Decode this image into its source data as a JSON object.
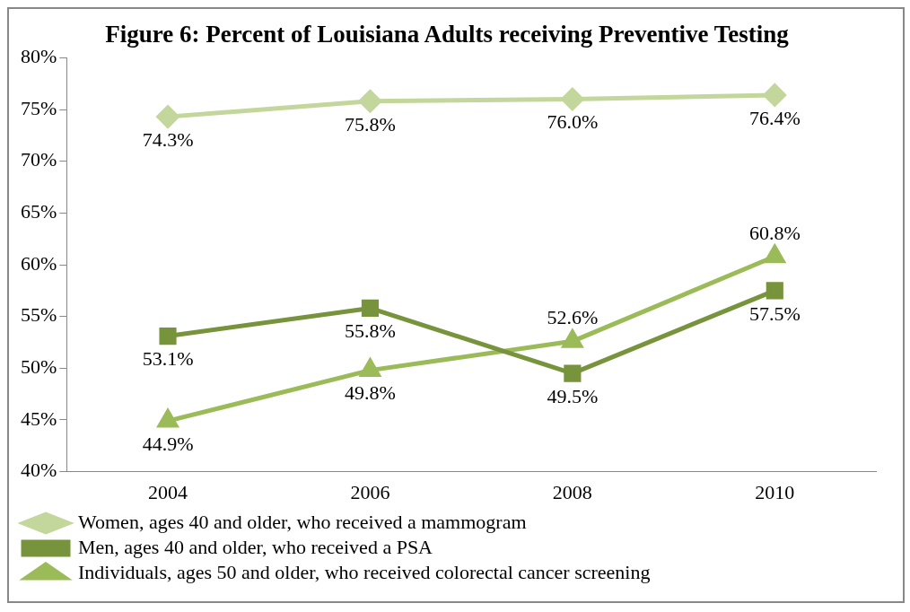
{
  "chart_data": {
    "type": "line",
    "title": "Figure 6: Percent of Louisiana Adults receiving Preventive Testing",
    "categories": [
      "2004",
      "2006",
      "2008",
      "2010"
    ],
    "series": [
      {
        "name": "Women, ages 40 and older, who received a mammogram",
        "color": "#c3d69b",
        "marker": "diamond",
        "values": [
          74.3,
          75.8,
          76.0,
          76.4
        ],
        "value_labels": [
          "74.3%",
          "75.8%",
          "76.0%",
          "76.4%"
        ]
      },
      {
        "name": "Men, ages 40 and older, who received a PSA",
        "color": "#77933c",
        "marker": "square",
        "values": [
          53.1,
          55.8,
          49.5,
          57.5
        ],
        "value_labels": [
          "53.1%",
          "55.8%",
          "49.5%",
          "57.5%"
        ]
      },
      {
        "name": "Individuals, ages 50 and older, who received colorectal cancer screening",
        "color": "#9bbb59",
        "marker": "triangle",
        "values": [
          44.9,
          49.8,
          52.6,
          60.8
        ],
        "value_labels": [
          "44.9%",
          "49.8%",
          "52.6%",
          "60.8%"
        ]
      }
    ],
    "ylim": [
      40,
      80
    ],
    "yticks": [
      {
        "value": 40,
        "label": "40%"
      },
      {
        "value": 45,
        "label": "45%"
      },
      {
        "value": 50,
        "label": "50%"
      },
      {
        "value": 55,
        "label": "55%"
      },
      {
        "value": 60,
        "label": "60%"
      },
      {
        "value": 65,
        "label": "65%"
      },
      {
        "value": 70,
        "label": "70%"
      },
      {
        "value": 75,
        "label": "75%"
      },
      {
        "value": 80,
        "label": "80%"
      }
    ],
    "grid": false,
    "legend": "bottom"
  }
}
